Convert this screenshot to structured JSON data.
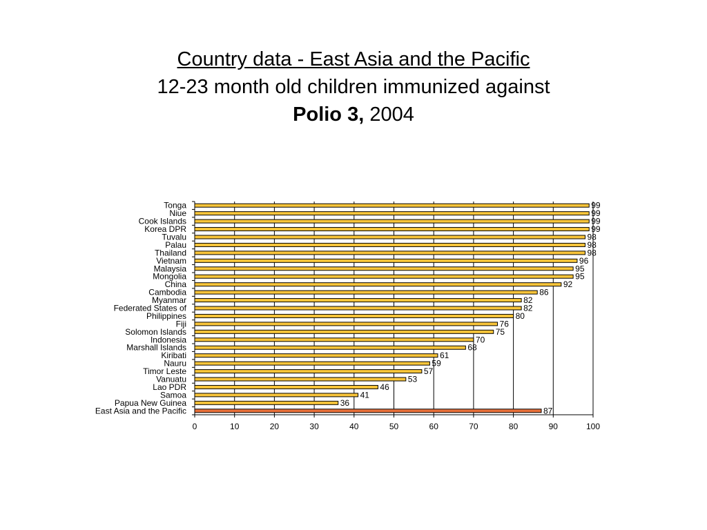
{
  "title": {
    "line1": "Country data - East Asia and the Pacific",
    "line2": "12-23 month old children immunized against",
    "line3_bold": "Polio 3,",
    "line3_rest": "2004"
  },
  "chart_data": {
    "type": "bar",
    "orientation": "horizontal",
    "categories": [
      "Tonga",
      "Niue",
      "Cook Islands",
      "Korea DPR",
      "Tuvalu",
      "Palau",
      "Thailand",
      "Vietnam",
      "Malaysia",
      "Mongolia",
      "China",
      "Cambodia",
      "Myanmar",
      "Federated States of",
      "Philippines",
      "Fiji",
      "Solomon Islands",
      "Indonesia",
      "Marshall Islands",
      "Kiribati",
      "Nauru",
      "Timor Leste",
      "Vanuatu",
      "Lao PDR",
      "Samoa",
      "Papua New  Guinea",
      "East Asia and the Pacific"
    ],
    "values": [
      99,
      99,
      99,
      99,
      98,
      98,
      98,
      96,
      95,
      95,
      92,
      86,
      82,
      82,
      80,
      76,
      75,
      70,
      68,
      61,
      59,
      57,
      53,
      46,
      41,
      36,
      87
    ],
    "highlight_index": 26,
    "xlim": [
      0,
      100
    ],
    "xticks": [
      0,
      10,
      20,
      30,
      40,
      50,
      60,
      70,
      80,
      90,
      100
    ],
    "grid": "vertical",
    "legend": "none",
    "colors": {
      "bar": "#F9C53A",
      "highlight": "#E8703A",
      "stroke": "#000000"
    }
  }
}
